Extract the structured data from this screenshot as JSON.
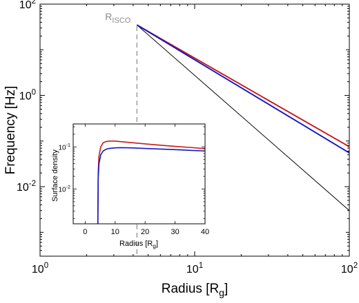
{
  "chart_data": [
    {
      "type": "line",
      "xscale": "log",
      "yscale": "log",
      "xlim": [
        1,
        100
      ],
      "ylim": [
        0.0003,
        100
      ],
      "xlabel": {
        "base": "Radius [R",
        "sub": "g",
        "tail": "]"
      },
      "ylabel": "Frequency [Hz]",
      "xticks": [
        {
          "value": 1,
          "base": "10",
          "exp": "0"
        },
        {
          "value": 10,
          "base": "10",
          "exp": "1"
        },
        {
          "value": 100,
          "base": "10",
          "exp": "2"
        }
      ],
      "yticks": [
        {
          "value": 100,
          "base": "10",
          "exp": "2"
        },
        {
          "value": 1,
          "base": "10",
          "exp": "0"
        },
        {
          "value": 0.01,
          "base": "10",
          "exp": "-2"
        }
      ],
      "annotation": {
        "text": "R",
        "sub": "ISCO",
        "x": 4.23,
        "color": "#8a8a8a"
      },
      "series": [
        {
          "color": "#000000",
          "points": [
            [
              4.23,
              35
            ],
            [
              100,
              0.003
            ]
          ]
        },
        {
          "color": "#c41a1a",
          "points": [
            [
              4.23,
              35
            ],
            [
              100,
              0.075
            ]
          ]
        },
        {
          "color": "#1414c8",
          "points": [
            [
              4.23,
              35
            ],
            [
              100,
              0.055
            ]
          ]
        }
      ]
    },
    {
      "type": "line",
      "xscale": "linear",
      "yscale": "log",
      "xlim": [
        -4,
        40
      ],
      "ylim": [
        0.0015,
        0.35
      ],
      "xlabel": {
        "base": "Radius [R",
        "sub": "g",
        "tail": "]"
      },
      "ylabel": "Surface density",
      "xticks": [
        {
          "value": 0,
          "label": "0"
        },
        {
          "value": 10,
          "label": "10"
        },
        {
          "value": 20,
          "label": "20"
        },
        {
          "value": 30,
          "label": "30"
        },
        {
          "value": 40,
          "label": "40"
        }
      ],
      "yticks": [
        {
          "value": 0.1,
          "base": "10",
          "exp": "-1"
        },
        {
          "value": 0.01,
          "base": "10",
          "exp": "-2"
        }
      ],
      "series": [
        {
          "color": "#c41a1a",
          "points": [
            [
              4.23,
              0.0015
            ],
            [
              4.35,
              0.025
            ],
            [
              4.6,
              0.06
            ],
            [
              5.2,
              0.1
            ],
            [
              6,
              0.125
            ],
            [
              7,
              0.134
            ],
            [
              8,
              0.137
            ],
            [
              9,
              0.138
            ],
            [
              10,
              0.137
            ],
            [
              12,
              0.133
            ],
            [
              15,
              0.127
            ],
            [
              20,
              0.118
            ],
            [
              25,
              0.11
            ],
            [
              30,
              0.103
            ],
            [
              35,
              0.097
            ],
            [
              40,
              0.091
            ]
          ]
        },
        {
          "color": "#1414c8",
          "points": [
            [
              4.23,
              0.0015
            ],
            [
              4.35,
              0.018
            ],
            [
              4.6,
              0.04
            ],
            [
              5.2,
              0.065
            ],
            [
              6,
              0.08
            ],
            [
              7,
              0.088
            ],
            [
              8,
              0.092
            ],
            [
              10,
              0.095
            ],
            [
              12,
              0.096
            ],
            [
              15,
              0.095
            ],
            [
              20,
              0.092
            ],
            [
              25,
              0.089
            ],
            [
              30,
              0.086
            ],
            [
              35,
              0.083
            ],
            [
              40,
              0.08
            ]
          ]
        }
      ]
    }
  ]
}
